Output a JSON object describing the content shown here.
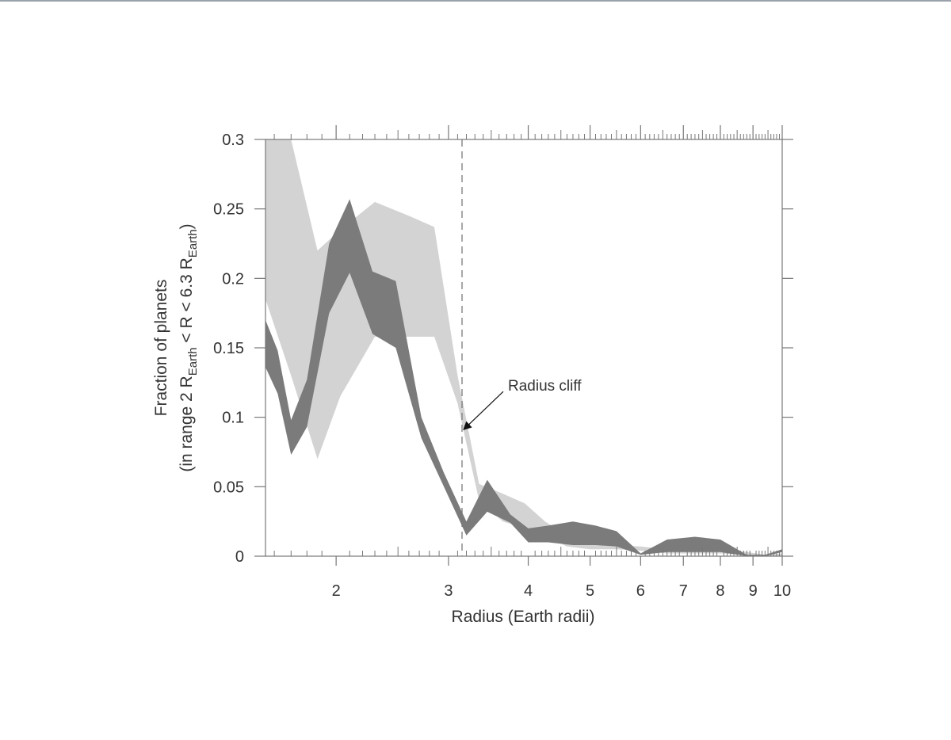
{
  "colors": {
    "band_light": "#d3d3d3",
    "band_dark": "#7b7b7b",
    "axis": "#777777",
    "text": "#333333",
    "marker_line": "#7a7a7a",
    "top_rule": "#9aa3ab"
  },
  "chart_data": {
    "type": "area",
    "x_scale": "log",
    "xlim": [
      1.55,
      10
    ],
    "ylim": [
      0,
      0.3
    ],
    "xlabel": "Radius (Earth radii)",
    "ylabel_line1": "Fraction of planets",
    "ylabel_line2_parts": [
      "(in range 2 R",
      "Earth",
      " < R < 6.3 R",
      "Earth",
      ")"
    ],
    "x_tick_labels": [
      "2",
      "3",
      "4",
      "5",
      "6",
      "7",
      "8",
      "9",
      "10"
    ],
    "x_tick_values": [
      2,
      3,
      4,
      5,
      6,
      7,
      8,
      9,
      10
    ],
    "y_tick_labels": [
      "0",
      "0.05",
      "0.1",
      "0.15",
      "0.2",
      "0.25",
      "0.3"
    ],
    "y_tick_values": [
      0,
      0.05,
      0.1,
      0.15,
      0.2,
      0.25,
      0.3
    ],
    "grid": false,
    "vertical_marker_x": 3.15,
    "annotation": {
      "text": "Radius cliff",
      "x": 3.15,
      "y": 0.09
    },
    "series": [
      {
        "style": "light",
        "x": [
          1.55,
          1.7,
          1.87,
          2.03,
          2.3,
          2.6,
          2.85,
          3.1,
          3.35,
          3.65,
          3.95,
          4.25,
          4.6,
          5.0,
          5.5,
          6.0,
          6.6,
          7.3,
          8.0,
          8.8,
          9.4,
          10.0
        ],
        "lower": [
          0.185,
          0.13,
          0.07,
          0.115,
          0.158,
          0.158,
          0.158,
          0.11,
          0.04,
          0.025,
          0.02,
          0.015,
          0.007,
          0.005,
          0.005,
          0.004,
          0.002,
          0.002,
          0.002,
          0.001,
          0.0,
          0.0
        ],
        "upper": [
          0.3,
          0.3,
          0.22,
          0.235,
          0.255,
          0.245,
          0.237,
          0.13,
          0.052,
          0.045,
          0.038,
          0.025,
          0.015,
          0.01,
          0.008,
          0.007,
          0.005,
          0.005,
          0.005,
          0.003,
          0.001,
          0.002
        ]
      },
      {
        "style": "dark",
        "x": [
          1.55,
          1.62,
          1.7,
          1.8,
          1.95,
          2.1,
          2.28,
          2.48,
          2.72,
          2.95,
          3.2,
          3.45,
          3.75,
          4.0,
          4.3,
          4.7,
          5.1,
          5.5,
          6.0,
          6.6,
          7.3,
          8.0,
          8.8,
          9.4,
          10.0
        ],
        "lower": [
          0.136,
          0.117,
          0.073,
          0.093,
          0.175,
          0.204,
          0.16,
          0.15,
          0.085,
          0.05,
          0.015,
          0.032,
          0.024,
          0.01,
          0.01,
          0.008,
          0.008,
          0.007,
          0.001,
          0.003,
          0.003,
          0.003,
          0.0,
          0.0,
          0.003
        ],
        "upper": [
          0.17,
          0.148,
          0.098,
          0.127,
          0.225,
          0.257,
          0.205,
          0.198,
          0.1,
          0.06,
          0.025,
          0.055,
          0.03,
          0.02,
          0.022,
          0.025,
          0.022,
          0.018,
          0.002,
          0.012,
          0.014,
          0.012,
          0.001,
          0.001,
          0.005
        ]
      }
    ]
  }
}
